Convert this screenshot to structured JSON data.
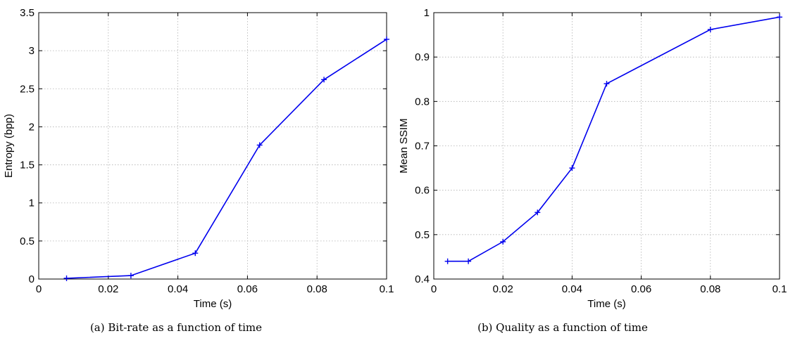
{
  "chart_data": [
    {
      "type": "line",
      "caption": "(a)  Bit-rate as a function of time",
      "xlabel": "Time (s)",
      "ylabel": "Entropy (bpp)",
      "xlim": [
        0,
        0.1
      ],
      "ylim": [
        0,
        3.5
      ],
      "xticks": [
        "0",
        "0.02",
        "0.04",
        "0.06",
        "0.08",
        "0.1"
      ],
      "yticks": [
        "0",
        "0.5",
        "1",
        "1.5",
        "2",
        "2.5",
        "3",
        "3.5"
      ],
      "grid": true,
      "series": [
        {
          "color": "#0000ee",
          "marker": "plus",
          "x": [
            0.008,
            0.0265,
            0.045,
            0.0635,
            0.082,
            0.1
          ],
          "y": [
            0.01,
            0.045,
            0.34,
            1.76,
            2.62,
            3.15
          ]
        }
      ]
    },
    {
      "type": "line",
      "caption": "(b)  Quality as a function of time",
      "xlabel": "Time (s)",
      "ylabel": "Mean SSIM",
      "xlim": [
        0,
        0.1
      ],
      "ylim": [
        0.4,
        1
      ],
      "xticks": [
        "0",
        "0.02",
        "0.04",
        "0.06",
        "0.08",
        "0.1"
      ],
      "yticks": [
        "0.4",
        "0.5",
        "0.6",
        "0.7",
        "0.8",
        "0.9",
        "1"
      ],
      "grid": true,
      "series": [
        {
          "color": "#0000ee",
          "marker": "plus",
          "x": [
            0.004,
            0.01,
            0.02,
            0.03,
            0.04,
            0.05,
            0.08,
            0.1
          ],
          "y": [
            0.44,
            0.44,
            0.484,
            0.55,
            0.65,
            0.84,
            0.962,
            0.99
          ]
        }
      ]
    }
  ]
}
